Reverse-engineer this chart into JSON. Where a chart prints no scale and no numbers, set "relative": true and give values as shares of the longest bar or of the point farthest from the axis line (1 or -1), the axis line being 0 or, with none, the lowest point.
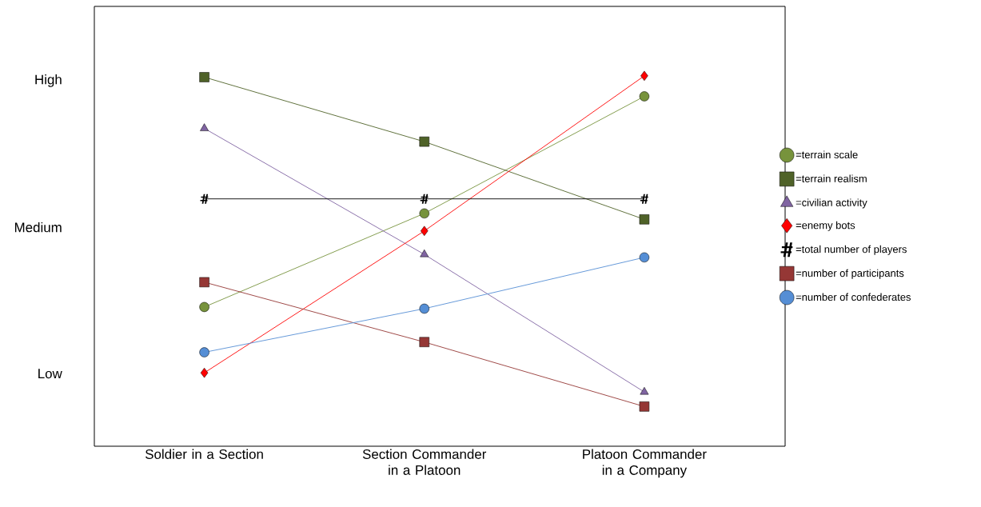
{
  "chart_data": {
    "type": "line",
    "categories": [
      "Soldier in a Section",
      "Section Commander in a Platoon",
      "Platoon Commander in a Company"
    ],
    "relative": true,
    "annotations": [
      "High",
      "Medium",
      "Low"
    ],
    "grid": false,
    "legend": "right",
    "series": [
      {
        "name": "=terrain scale",
        "color": "#77933c",
        "marker": "circle",
        "values": [
          0.301,
          0.584,
          0.938
        ]
      },
      {
        "name": "=terrain realism",
        "color": "#4f6228",
        "marker": "square",
        "values": [
          0.996,
          0.801,
          0.566
        ]
      },
      {
        "name": "=civilian activity",
        "color": "#8064a2",
        "marker": "triangle",
        "values": [
          0.841,
          0.46,
          0.044
        ]
      },
      {
        "name": "=enemy bots",
        "color": "#ff0000",
        "marker": "diamond",
        "values": [
          0.102,
          0.531,
          1.0
        ]
      },
      {
        "name": "=total number of players",
        "color": "#000000",
        "marker": "cross",
        "values": [
          0.628,
          0.628,
          0.628
        ]
      },
      {
        "name": "=number of participants",
        "color": "#953735",
        "marker": "square",
        "values": [
          0.376,
          0.195,
          0.0
        ]
      },
      {
        "name": "=number of confederates",
        "color": "#558ed5",
        "marker": "circle",
        "values": [
          0.164,
          0.296,
          0.451
        ]
      }
    ]
  }
}
